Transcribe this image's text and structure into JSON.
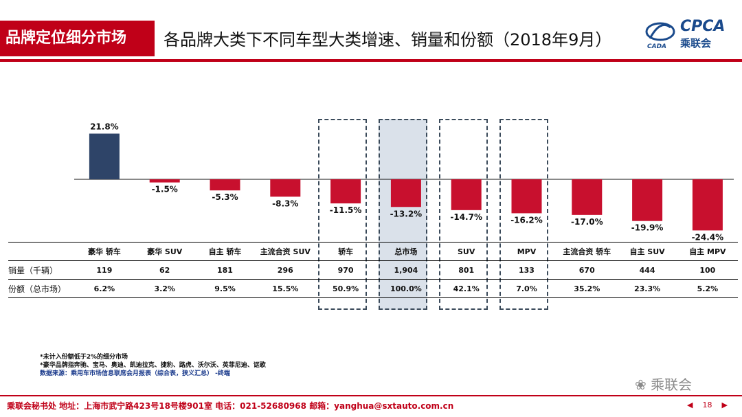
{
  "header": {
    "section_title": "品牌定位细分市场",
    "main_title": "各品牌大类下不同车型大类增速、销量和份额（2018年9月）",
    "logo_text": "CPCA",
    "logo_sub": "乘联会",
    "logo_mark_text": "CADA"
  },
  "chart_data": {
    "type": "bar",
    "categories": [
      "豪华 轿车",
      "豪华 SUV",
      "自主 轿车",
      "主流合资 SUV",
      "轿车",
      "总市场",
      "SUV",
      "MPV",
      "主流合资 轿车",
      "自主 SUV",
      "自主 MPV"
    ],
    "values": [
      21.8,
      -1.5,
      -5.3,
      -8.3,
      -11.5,
      -13.2,
      -14.7,
      -16.2,
      -17.0,
      -19.9,
      -24.4
    ],
    "value_labels": [
      "21.8%",
      "-1.5%",
      "-5.3%",
      "-8.3%",
      "-11.5%",
      "-13.2%",
      "-14.7%",
      "-16.2%",
      "-17.0%",
      "-19.9%",
      "-24.4%"
    ],
    "colors": {
      "first": "#2e4468",
      "rest": "#c8102e"
    },
    "highlighted": [
      "轿车",
      "总市场",
      "SUV",
      "MPV"
    ]
  },
  "table": {
    "rows": [
      {
        "label": "销量（千辆）",
        "values": [
          "119",
          "62",
          "181",
          "296",
          "970",
          "1,904",
          "801",
          "133",
          "670",
          "444",
          "100"
        ]
      },
      {
        "label": "份额（总市场）",
        "values": [
          "6.2%",
          "3.2%",
          "9.5%",
          "15.5%",
          "50.9%",
          "100.0%",
          "42.1%",
          "7.0%",
          "35.2%",
          "23.3%",
          "5.2%"
        ]
      }
    ]
  },
  "notes": {
    "line1": "*未计入份额低于2%的细分市场",
    "line2": "*豪华品牌指奔驰、宝马、奥迪、凯迪拉克、捷豹、路虎、沃尔沃、英菲尼迪、讴歌",
    "line3": "数据来源：乘用车市场信息联席会月报表（综合表，狭义汇总） -终端"
  },
  "footer": {
    "text": "乘联会秘书处   地址：上海市武宁路423号18号楼901室  电话：021-52680968   邮箱：yanghua@sxtauto.com.cn",
    "page": "18",
    "prev_icon": "triangle-left-icon",
    "next_icon": "triangle-right-icon",
    "watermark": "乘联会"
  }
}
